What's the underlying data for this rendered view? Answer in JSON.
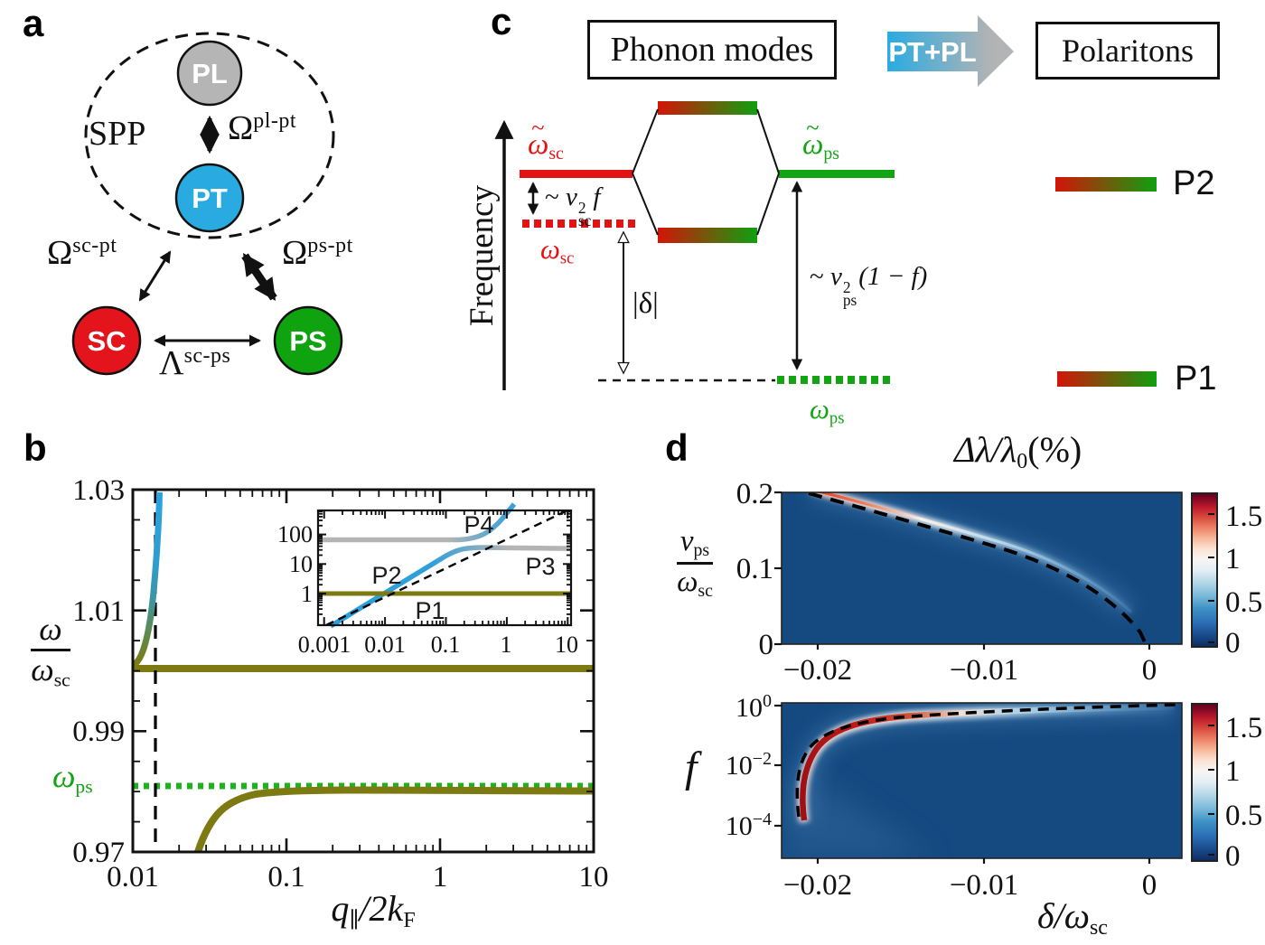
{
  "panel_labels": {
    "a": "a",
    "b": "b",
    "c": "c",
    "d": "d"
  },
  "panel_a": {
    "spp_label": "SPP",
    "nodes": {
      "pl": "PL",
      "pt": "PT",
      "sc": "SC",
      "ps": "PS"
    },
    "couplings": {
      "pl_pt": {
        "base": "Ω",
        "sup": "pl-pt"
      },
      "sc_pt": {
        "base": "Ω",
        "sup": "sc-pt"
      },
      "ps_pt": {
        "base": "Ω",
        "sup": "ps-pt"
      },
      "sc_ps": {
        "base": "Λ",
        "sup": "sc-ps"
      }
    },
    "colors": {
      "pl": "#b5b5b5",
      "pt": "#29abe2",
      "sc": "#e3141c",
      "ps": "#0fa30f"
    }
  },
  "panel_b": {
    "y_ticks": [
      "1.03",
      "1.01",
      "0.99",
      "0.97"
    ],
    "x_ticks": [
      "0.01",
      "0.1",
      "1",
      "10"
    ],
    "ylabel": {
      "num": "ω",
      "den_base": "ω",
      "den_sub": "sc"
    },
    "xlabel": {
      "q": "q",
      "q_sub": "∥",
      "mid": "/2",
      "k": "k",
      "k_sub": "F"
    },
    "omega_ps": {
      "base": "ω",
      "sub": "ps"
    },
    "inset": {
      "y_ticks": [
        "100",
        "10",
        "1"
      ],
      "x_ticks": [
        "0.001",
        "0.01",
        "0.1",
        "1",
        "10"
      ],
      "p1": "P1",
      "p2": "P2",
      "p3": "P3",
      "p4": "P4"
    }
  },
  "panel_c": {
    "phonon_box": "Phonon modes",
    "polariton_box": "Polaritons",
    "pt_pl_arrow": "PT+PL",
    "frequency_label": "Frequency",
    "levels": {
      "wsc_t": {
        "tilde": "~",
        "base": "ω",
        "sub": "sc"
      },
      "wsc": {
        "base": "ω",
        "sub": "sc"
      },
      "wps_t": {
        "tilde": "~",
        "base": "ω",
        "sub": "ps"
      },
      "wps": {
        "base": "ω",
        "sub": "ps"
      }
    },
    "ann": {
      "nu_sc": {
        "pre": "~ ",
        "base": "ν",
        "sup": "2",
        "sub": "sc",
        "post": "f"
      },
      "nu_ps": {
        "pre": "~ ",
        "base": "ν",
        "sup": "2",
        "sub": "ps",
        "post": "(1 − f)"
      },
      "delta": "|δ|"
    },
    "legend": {
      "p2": "P2",
      "p1": "P1"
    }
  },
  "panel_d": {
    "title": {
      "pre": "Δλ/λ",
      "sub": "0",
      "post": "(%)"
    },
    "colorbar_ticks": [
      "1.5",
      "1",
      "0.5",
      "0"
    ],
    "top": {
      "y_ticks": [
        "0.2",
        "0.1",
        "0"
      ],
      "x_ticks": [
        "−0.02",
        "−0.01",
        "0"
      ],
      "ylabel": {
        "num_base": "ν",
        "num_sub": "ps",
        "den_base": "ω",
        "den_sub": "sc"
      }
    },
    "bottom": {
      "y_ticks": [
        {
          "base": "10",
          "sup": "0"
        },
        {
          "base": "10",
          "sup": "−2"
        },
        {
          "base": "10",
          "sup": "−4"
        }
      ],
      "x_ticks": [
        "−0.02",
        "−0.01",
        "0"
      ],
      "ylabel": "f",
      "xlabel": {
        "pre": "δ/",
        "base": "ω",
        "sub": "sc"
      }
    }
  },
  "chart_data": [
    {
      "id": "b_main",
      "type": "line",
      "xscale": "log",
      "xlabel": "q∥/2kF",
      "ylabel": "ω/ωsc",
      "xlim": [
        0.01,
        10
      ],
      "ylim": [
        0.97,
        1.03
      ],
      "series": [
        {
          "name": "upper-polariton-SPP-branch",
          "color": "olive-to-blue gradient",
          "points": [
            [
              0.01,
              1.0005
            ],
            [
              0.011,
              1.002
            ],
            [
              0.012,
              1.005
            ],
            [
              0.013,
              1.01
            ],
            [
              0.014,
              1.017
            ],
            [
              0.015,
              1.025
            ],
            [
              0.016,
              1.03
            ]
          ]
        },
        {
          "name": "phonon-flat-branch",
          "color": "#7e7a12",
          "points": [
            [
              0.01,
              1.0
            ],
            [
              10,
              1.0
            ]
          ]
        },
        {
          "name": "lower-polariton-branch",
          "color": "#7e7a12",
          "points": [
            [
              0.026,
              0.97
            ],
            [
              0.04,
              0.9755
            ],
            [
              0.07,
              0.978
            ],
            [
              0.15,
              0.9795
            ],
            [
              1,
              0.98
            ],
            [
              10,
              0.98
            ]
          ]
        },
        {
          "name": "omega-ps-reference",
          "style": "dotted",
          "color": "#1cb41c",
          "y": 0.981
        },
        {
          "name": "light-line",
          "style": "dashed-vertical",
          "color": "#000",
          "x": 0.0138
        }
      ]
    },
    {
      "id": "b_inset",
      "type": "line",
      "xscale": "log",
      "yscale": "log",
      "xlim": [
        0.001,
        10
      ],
      "ylim": [
        0.09,
        600
      ],
      "series": [
        {
          "name": "P1-P2-dispersion",
          "color": "#2da0dc",
          "points": [
            [
              0.0017,
              0.1
            ],
            [
              0.01,
              0.7
            ],
            [
              0.02,
              1.6
            ],
            [
              0.1,
              7
            ],
            [
              0.3,
              20
            ],
            [
              0.7,
              30
            ],
            [
              10,
              32
            ]
          ]
        },
        {
          "name": "P4-upper-branch",
          "color": "gray-to-blue",
          "points": [
            [
              0.001,
              68
            ],
            [
              0.2,
              68
            ],
            [
              0.5,
              110
            ],
            [
              0.8,
              400
            ]
          ]
        },
        {
          "name": "phonon-line",
          "color": "#7e7a12",
          "y": 1
        },
        {
          "name": "light-cone",
          "style": "dashed",
          "points": [
            [
              0.0012,
              0.1
            ],
            [
              10,
              500
            ]
          ]
        }
      ],
      "labels": [
        "P1",
        "P2",
        "P3",
        "P4"
      ]
    },
    {
      "id": "d_top",
      "type": "heatmap",
      "xlabel": "δ/ωsc",
      "ylabel": "νps/ωsc",
      "xlim": [
        -0.022,
        0.002
      ],
      "ylim": [
        0,
        0.2
      ],
      "colorbar": {
        "label": "Δλ/λ0(%)",
        "ticks": [
          0,
          0.5,
          1,
          1.5
        ],
        "range": [
          0,
          1.75
        ],
        "colormap": "RdBu_r"
      },
      "background_value": 0.15,
      "ridge": "thin enhancement band just above dashed curve; ~1.6% (red) near (-0.019,0.2), ~1% (white) near (-0.012,0.14), fading to ~0.4% toward (0,0)",
      "dashed_curve": [
        [
          -0.019,
          0.2
        ],
        [
          -0.014,
          0.15
        ],
        [
          -0.01,
          0.115
        ],
        [
          -0.006,
          0.082
        ],
        [
          -0.002,
          0.04
        ],
        [
          0,
          0
        ]
      ]
    },
    {
      "id": "d_bottom",
      "type": "heatmap",
      "xlabel": "δ/ωsc",
      "ylabel": "f",
      "yscale": "log",
      "xlim": [
        -0.022,
        0.002
      ],
      "ylim": [
        3e-06,
        1
      ],
      "colorbar": {
        "label": "Δλ/λ0(%)",
        "ticks": [
          0,
          0.5,
          1,
          1.5
        ],
        "range": [
          0,
          1.75
        ],
        "colormap": "RdBu_r"
      },
      "ridge": "hook-shaped enhancement: red (>1.5%) vertical band at δ≈-0.0205 for f≈1e-3..0.1, bending right and fading red→white→light blue along f→1 as δ→0",
      "dashed_curve": [
        [
          -0.0208,
          0.0001
        ],
        [
          -0.0205,
          0.01
        ],
        [
          -0.019,
          0.08
        ],
        [
          -0.015,
          0.35
        ],
        [
          -0.01,
          0.6
        ],
        [
          -0.005,
          0.8
        ],
        [
          0,
          1
        ]
      ]
    }
  ]
}
